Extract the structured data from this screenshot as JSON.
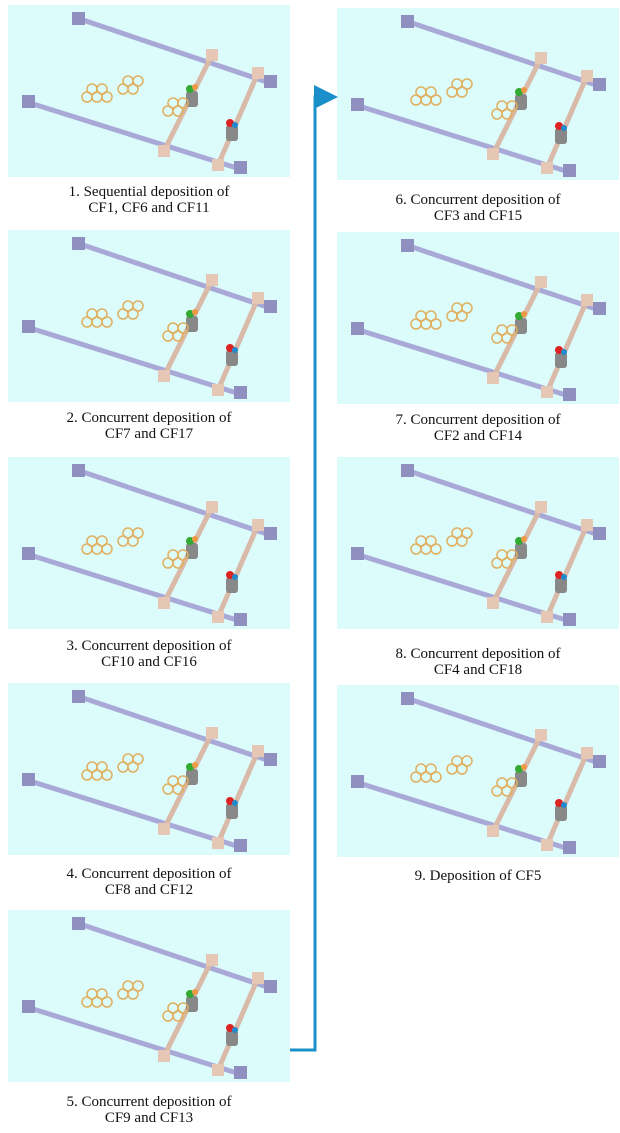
{
  "panels": [
    {
      "caption": [
        "1. Sequential deposition of",
        "CF1, CF6 and CF11"
      ]
    },
    {
      "caption": [
        "2. Concurrent deposition of",
        "CF7 and CF17"
      ]
    },
    {
      "caption": [
        "3. Concurrent deposition of",
        "CF10 and CF16"
      ]
    },
    {
      "caption": [
        "4. Concurrent deposition of",
        "CF8 and CF12"
      ]
    },
    {
      "caption": [
        "5. Concurrent deposition of",
        "CF9 and CF13"
      ]
    },
    {
      "caption": [
        "6. Concurrent deposition of",
        "CF3 and CF15"
      ]
    },
    {
      "caption": [
        "7. Concurrent deposition of",
        "CF2 and CF14"
      ]
    },
    {
      "caption": [
        "8. Concurrent deposition of",
        "CF4 and CF18"
      ]
    },
    {
      "caption": [
        "9. Deposition of CF5"
      ]
    }
  ]
}
